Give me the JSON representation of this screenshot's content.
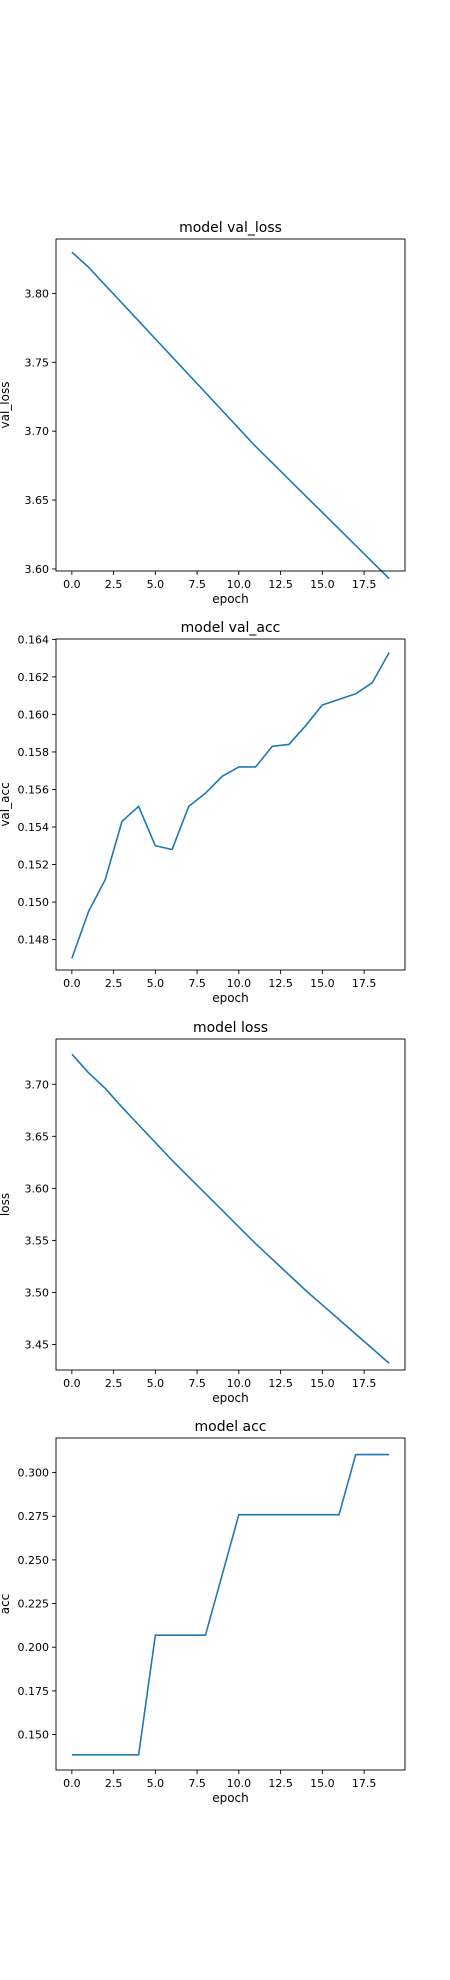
{
  "chart_data": [
    {
      "type": "line",
      "title": "model val_loss",
      "xlabel": "epoch",
      "ylabel": "val_loss",
      "xlim": [
        -0.95,
        19.95
      ],
      "ylim": [
        3.5985,
        3.8395
      ],
      "xticks": [
        0,
        2.5,
        5,
        7.5,
        10,
        12.5,
        15,
        17.5
      ],
      "xtick_labels": [
        "0.0",
        "2.5",
        "5.0",
        "7.5",
        "10.0",
        "12.5",
        "15.0",
        "17.5"
      ],
      "yticks": [
        3.6,
        3.65,
        3.7,
        3.75,
        3.8
      ],
      "ytick_labels": [
        "3.60",
        "3.65",
        "3.70",
        "3.75",
        "3.80"
      ],
      "grid": false,
      "color": "#1f77b4",
      "x": [
        0,
        1,
        2,
        3,
        4,
        5,
        6,
        7,
        8,
        9,
        10,
        11,
        12,
        13,
        14,
        15,
        16,
        17,
        18,
        19
      ],
      "values": [
        3.83,
        3.819,
        3.806,
        3.793,
        3.78,
        3.767,
        3.754,
        3.741,
        3.728,
        3.715,
        3.702,
        3.689,
        3.677,
        3.665,
        3.653,
        3.641,
        3.629,
        3.617,
        3.605,
        3.593
      ]
    },
    {
      "type": "line",
      "title": "model val_acc",
      "xlabel": "epoch",
      "ylabel": "val_acc",
      "xlim": [
        -0.95,
        19.95
      ],
      "ylim": [
        0.14638,
        0.16402
      ],
      "xticks": [
        0,
        2.5,
        5,
        7.5,
        10,
        12.5,
        15,
        17.5
      ],
      "xtick_labels": [
        "0.0",
        "2.5",
        "5.0",
        "7.5",
        "10.0",
        "12.5",
        "15.0",
        "17.5"
      ],
      "yticks": [
        0.148,
        0.15,
        0.152,
        0.154,
        0.156,
        0.158,
        0.16,
        0.162,
        0.164
      ],
      "ytick_labels": [
        "0.148",
        "0.150",
        "0.152",
        "0.154",
        "0.156",
        "0.158",
        "0.160",
        "0.162",
        "0.164"
      ],
      "grid": false,
      "color": "#1f77b4",
      "x": [
        0,
        1,
        2,
        3,
        4,
        5,
        6,
        7,
        8,
        9,
        10,
        11,
        12,
        13,
        14,
        15,
        16,
        17,
        18,
        19
      ],
      "values": [
        0.147,
        0.1495,
        0.1512,
        0.1543,
        0.1551,
        0.153,
        0.1528,
        0.1551,
        0.1558,
        0.1567,
        0.1572,
        0.1572,
        0.1583,
        0.1584,
        0.1594,
        0.1605,
        0.1608,
        0.1611,
        0.1617,
        0.1633
      ]
    },
    {
      "type": "line",
      "title": "model loss",
      "xlabel": "epoch",
      "ylabel": "loss",
      "xlim": [
        -0.95,
        19.95
      ],
      "ylim": [
        3.4255,
        3.7435
      ],
      "xticks": [
        0,
        2.5,
        5,
        7.5,
        10,
        12.5,
        15,
        17.5
      ],
      "xtick_labels": [
        "0.0",
        "2.5",
        "5.0",
        "7.5",
        "10.0",
        "12.5",
        "15.0",
        "17.5"
      ],
      "yticks": [
        3.45,
        3.5,
        3.55,
        3.6,
        3.65,
        3.7
      ],
      "ytick_labels": [
        "3.45",
        "3.50",
        "3.55",
        "3.60",
        "3.65",
        "3.70"
      ],
      "grid": false,
      "color": "#1f77b4",
      "x": [
        0,
        1,
        2,
        3,
        4,
        5,
        6,
        7,
        8,
        9,
        10,
        11,
        12,
        13,
        14,
        15,
        16,
        17,
        18,
        19
      ],
      "values": [
        3.729,
        3.711,
        3.696,
        3.678,
        3.661,
        3.644,
        3.627,
        3.611,
        3.595,
        3.579,
        3.563,
        3.547,
        3.532,
        3.517,
        3.502,
        3.488,
        3.474,
        3.46,
        3.446,
        3.432
      ]
    },
    {
      "type": "line",
      "title": "model acc",
      "xlabel": "epoch",
      "ylabel": "acc",
      "xlim": [
        -0.95,
        19.95
      ],
      "ylim": [
        0.1297,
        0.3198
      ],
      "xticks": [
        0,
        2.5,
        5,
        7.5,
        10,
        12.5,
        15,
        17.5
      ],
      "xtick_labels": [
        "0.0",
        "2.5",
        "5.0",
        "7.5",
        "10.0",
        "12.5",
        "15.0",
        "17.5"
      ],
      "yticks": [
        0.15,
        0.175,
        0.2,
        0.225,
        0.25,
        0.275,
        0.3
      ],
      "ytick_labels": [
        "0.150",
        "0.175",
        "0.200",
        "0.225",
        "0.250",
        "0.275",
        "0.300"
      ],
      "grid": false,
      "color": "#1f77b4",
      "x": [
        0,
        1,
        2,
        3,
        4,
        5,
        6,
        7,
        8,
        9,
        10,
        11,
        12,
        13,
        14,
        15,
        16,
        17,
        18,
        19
      ],
      "values": [
        0.1384,
        0.1384,
        0.1384,
        0.1384,
        0.1384,
        0.2069,
        0.2069,
        0.2069,
        0.2069,
        0.2414,
        0.2759,
        0.2759,
        0.2759,
        0.2759,
        0.2759,
        0.2759,
        0.2759,
        0.3103,
        0.3103,
        0.3103
      ]
    }
  ]
}
